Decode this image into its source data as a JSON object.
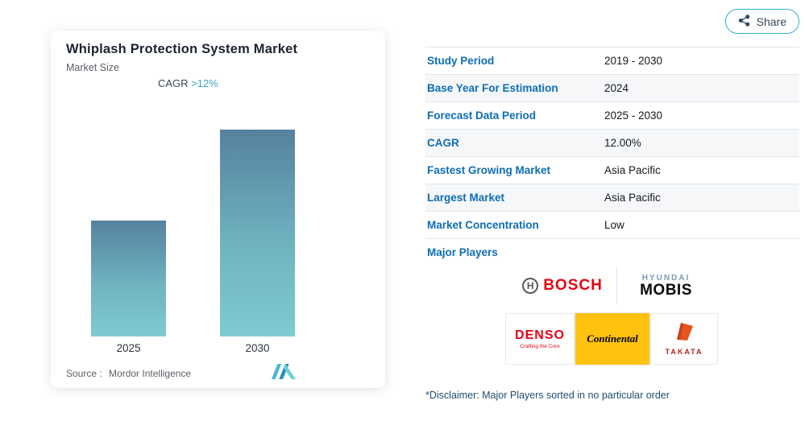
{
  "share_button": {
    "label": "Share"
  },
  "chart": {
    "title": "Whiplash Protection System Market",
    "subtitle": "Market Size",
    "cagr_label": "CAGR",
    "cagr_value": ">12%",
    "source_label": "Source :",
    "source_name": "Mordor Intelligence"
  },
  "chart_data": {
    "type": "bar",
    "title": "Whiplash Protection System Market",
    "subtitle": "Market Size",
    "categories": [
      "2025",
      "2030"
    ],
    "values": [
      100,
      178
    ],
    "values_unit": "relative market size index (no value axis shown)",
    "annotation": "CAGR >12%",
    "grid": false,
    "legend": "none",
    "bar_gradient": [
      "#56819f",
      "#7ecbd1"
    ],
    "source": "Source : Mordor Intelligence"
  },
  "facts": {
    "rows": [
      {
        "label": "Study Period",
        "value": "2019 - 2030"
      },
      {
        "label": "Base Year For Estimation",
        "value": "2024"
      },
      {
        "label": "Forecast Data Period",
        "value": "2025 - 2030"
      },
      {
        "label": "CAGR",
        "value": "12.00%"
      },
      {
        "label": "Fastest Growing Market",
        "value": "Asia Pacific"
      },
      {
        "label": "Largest Market",
        "value": "Asia Pacific"
      },
      {
        "label": "Market Concentration",
        "value": "Low"
      }
    ]
  },
  "major_players": {
    "label": "Major Players",
    "bosch": {
      "symbol_letter": "H",
      "name": "BOSCH"
    },
    "hyundai_mobis": {
      "line1": "HYUNDAI",
      "line2": "MOBIS"
    },
    "denso": {
      "name": "DENSO",
      "tagline": "Crafting the Core"
    },
    "continental": {
      "name": "Continental"
    },
    "takata": {
      "name": "TAKATA"
    },
    "disclaimer": "*Disclaimer: Major Players sorted in no particular order"
  },
  "colors": {
    "accent_teal": "#2fb4c7",
    "label_blue": "#0e6db4",
    "bar_top": "#56819f",
    "bar_bottom": "#7ecbd1",
    "bosch_red": "#e30613",
    "denso_red": "#e60012",
    "continental_yellow": "#ffc20e",
    "takata_orange": "#e4561e"
  }
}
